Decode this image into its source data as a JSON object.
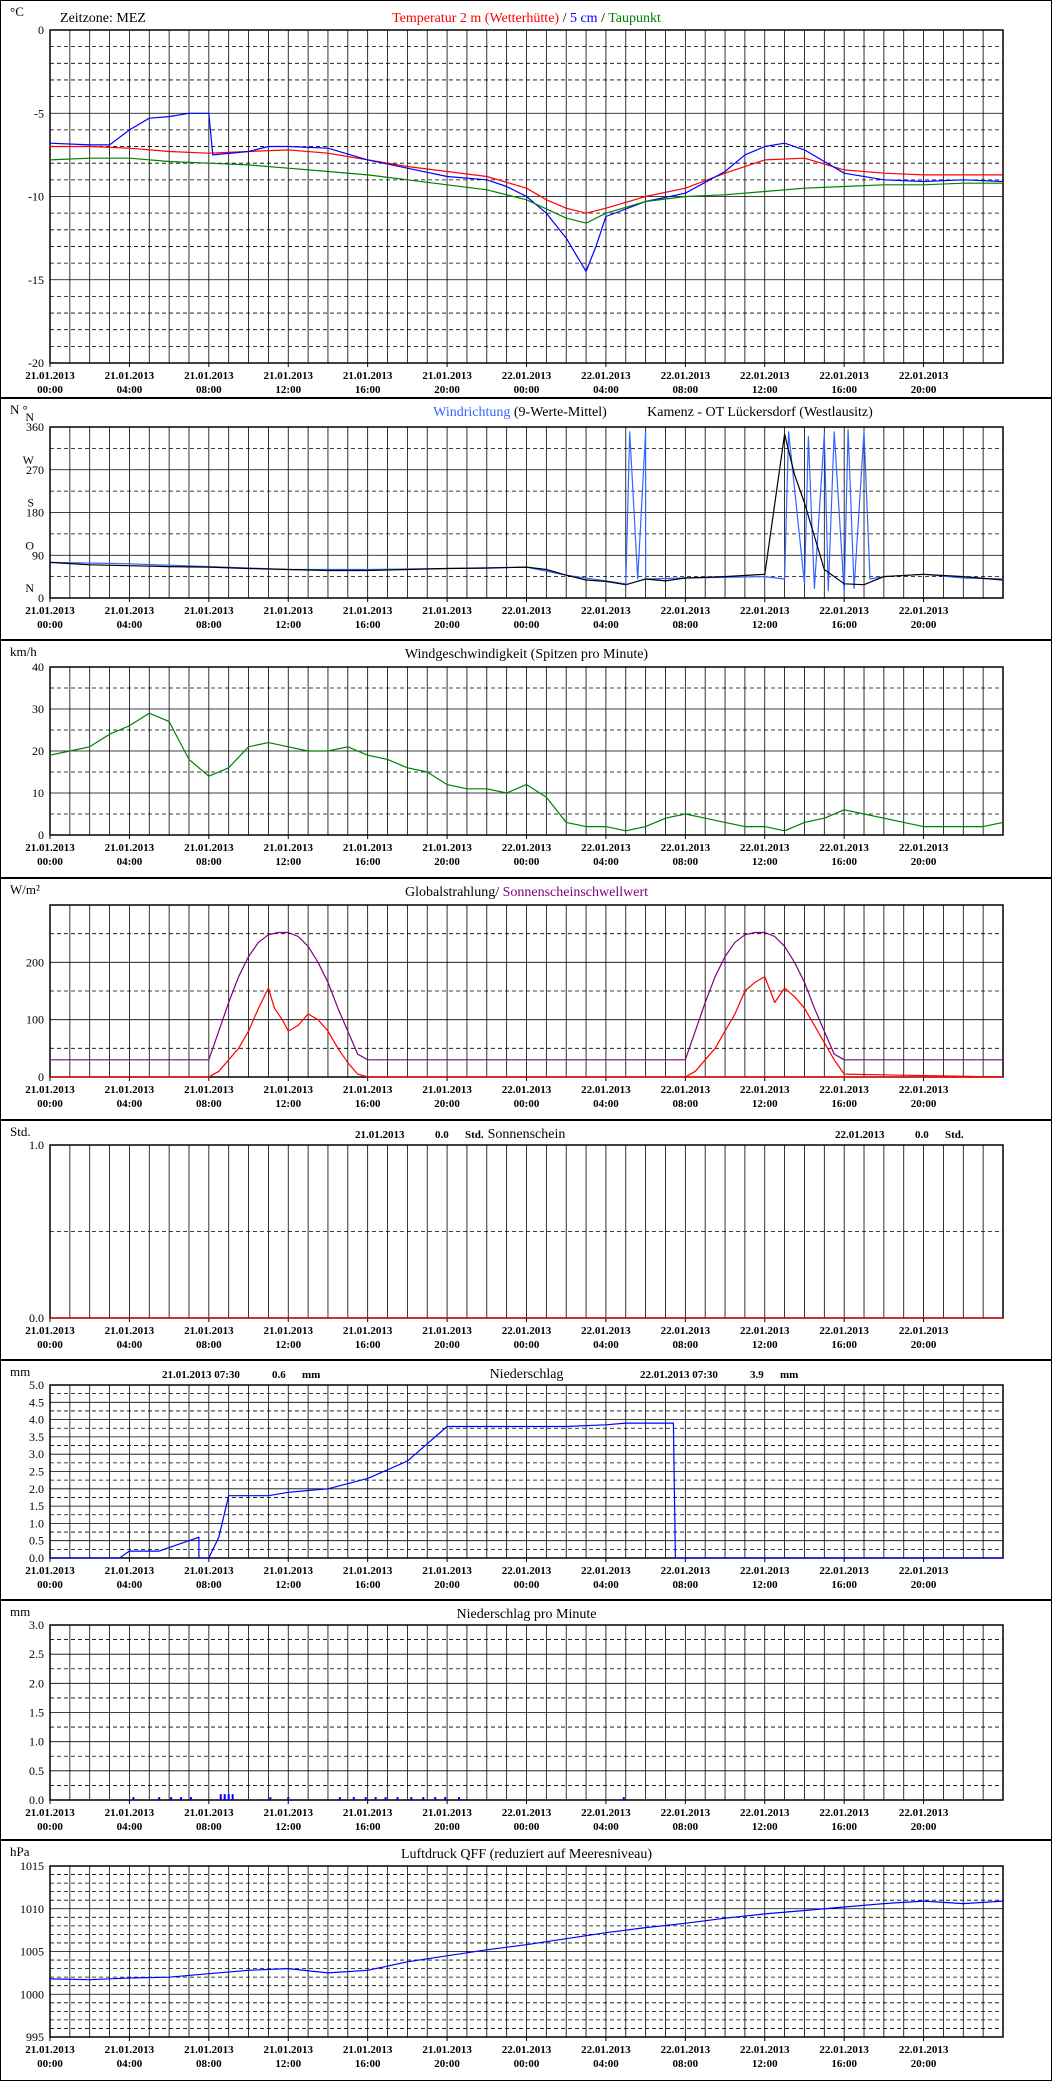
{
  "x_ticks": [
    [
      "21.01.2013",
      "00:00"
    ],
    [
      "21.01.2013",
      "04:00"
    ],
    [
      "21.01.2013",
      "08:00"
    ],
    [
      "21.01.2013",
      "12:00"
    ],
    [
      "21.01.2013",
      "16:00"
    ],
    [
      "21.01.2013",
      "20:00"
    ],
    [
      "22.01.2013",
      "00:00"
    ],
    [
      "22.01.2013",
      "04:00"
    ],
    [
      "22.01.2013",
      "08:00"
    ],
    [
      "22.01.2013",
      "12:00"
    ],
    [
      "22.01.2013",
      "16:00"
    ],
    [
      "22.01.2013",
      "20:00"
    ]
  ],
  "chart_data": [
    {
      "id": "temperature",
      "type": "line",
      "unit": "°C",
      "title_parts": [
        {
          "text": "Temperatur 2 m (Wetterhütte)",
          "color": "#ff0000"
        },
        {
          "text": " / ",
          "color": "#000000"
        },
        {
          "text": "5 cm",
          "color": "#0000ff"
        },
        {
          "text": " / ",
          "color": "#000000"
        },
        {
          "text": "Taupunkt",
          "color": "#008000"
        }
      ],
      "info_left": "Zeitzone: MEZ",
      "ylim": [
        -20,
        0
      ],
      "yticks": [
        0,
        -5,
        -10,
        -15,
        -20
      ],
      "ytick_labels": [
        "0",
        "-5",
        "-10",
        "-15",
        "-20"
      ],
      "minor_step": 1,
      "major_step": 5,
      "xlim": [
        0,
        48
      ],
      "series": [
        {
          "name": "Temperatur 2 m (Wetterhütte)",
          "color": "#ff0000",
          "x": [
            0,
            2,
            4,
            6,
            8,
            10,
            12,
            14,
            16,
            18,
            20,
            22,
            24,
            25,
            26,
            27,
            28,
            30,
            32,
            34,
            36,
            38,
            40,
            42,
            44,
            46,
            48
          ],
          "y": [
            -7.0,
            -7.0,
            -7.1,
            -7.3,
            -7.4,
            -7.3,
            -7.2,
            -7.4,
            -7.8,
            -8.2,
            -8.5,
            -8.8,
            -9.5,
            -10.2,
            -10.7,
            -11.0,
            -10.7,
            -10.0,
            -9.5,
            -8.6,
            -7.8,
            -7.7,
            -8.4,
            -8.6,
            -8.7,
            -8.7,
            -8.7
          ]
        },
        {
          "name": "5 cm",
          "color": "#0000ff",
          "x": [
            0,
            2,
            3,
            4,
            5,
            6,
            7,
            8,
            8.2,
            10,
            11,
            12,
            14,
            16,
            18,
            20,
            22,
            23,
            24,
            25,
            26,
            26.5,
            27,
            27.5,
            28,
            30,
            32,
            34,
            35,
            36,
            37,
            38,
            40,
            42,
            44,
            46,
            48
          ],
          "y": [
            -6.8,
            -6.9,
            -6.9,
            -6.0,
            -5.3,
            -5.2,
            -5.0,
            -5.0,
            -7.5,
            -7.3,
            -7.0,
            -7.0,
            -7.1,
            -7.8,
            -8.3,
            -8.8,
            -9.0,
            -9.4,
            -10.0,
            -11.0,
            -12.5,
            -13.5,
            -14.5,
            -13.0,
            -11.2,
            -10.3,
            -9.8,
            -8.5,
            -7.5,
            -7.0,
            -6.8,
            -7.2,
            -8.6,
            -9.0,
            -9.1,
            -9.0,
            -9.1
          ]
        },
        {
          "name": "Taupunkt",
          "color": "#008000",
          "x": [
            0,
            2,
            4,
            6,
            8,
            10,
            12,
            14,
            16,
            18,
            20,
            22,
            24,
            26,
            27,
            28,
            30,
            32,
            34,
            36,
            38,
            40,
            42,
            44,
            46,
            48
          ],
          "y": [
            -7.8,
            -7.7,
            -7.7,
            -7.9,
            -8.0,
            -8.1,
            -8.3,
            -8.5,
            -8.7,
            -9.0,
            -9.3,
            -9.6,
            -10.2,
            -11.3,
            -11.6,
            -11.0,
            -10.3,
            -10.0,
            -9.9,
            -9.7,
            -9.5,
            -9.4,
            -9.3,
            -9.3,
            -9.2,
            -9.2
          ]
        }
      ]
    },
    {
      "id": "wind_direction",
      "type": "line",
      "unit": "N °",
      "title_parts": [
        {
          "text": "Windrichtung",
          "color": "#3366ff"
        },
        {
          "text": " (9-Werte-Mittel)",
          "color": "#000000"
        }
      ],
      "info_right": "Kamenz - OT Lückersdorf (Westlausitz)",
      "ylim": [
        0,
        360
      ],
      "yticks": [
        0,
        90,
        180,
        270,
        360
      ],
      "ytick_labels": [
        "0",
        "90",
        "180",
        "270",
        "360"
      ],
      "compass_labels": [
        "N",
        "O",
        "S",
        "W",
        "N"
      ],
      "minor_step": 45,
      "major_step": 90,
      "xlim": [
        0,
        48
      ],
      "series": [
        {
          "name": "Windrichtung",
          "color": "#3366ff",
          "x": [
            0,
            4,
            8,
            12,
            16,
            20,
            24,
            26,
            29,
            29.2,
            29.6,
            30,
            30,
            32,
            36,
            37,
            37.2,
            38,
            38.2,
            38.5,
            39,
            39.2,
            39.5,
            40,
            40.2,
            40.5,
            41,
            41.3,
            42,
            44,
            46,
            48
          ],
          "y": [
            75,
            72,
            66,
            60,
            60,
            62,
            65,
            48,
            30,
            350,
            40,
            350,
            40,
            42,
            45,
            40,
            350,
            30,
            340,
            20,
            345,
            15,
            350,
            10,
            355,
            20,
            350,
            40,
            45,
            50,
            42,
            40
          ]
        },
        {
          "name": "9-Werte-Mittel",
          "color": "#000000",
          "x": [
            0,
            2,
            4,
            6,
            8,
            10,
            12,
            14,
            16,
            18,
            20,
            22,
            24,
            25,
            26,
            27,
            28,
            29,
            30,
            31,
            32,
            34,
            36,
            37,
            37.5,
            38,
            39,
            40,
            41,
            42,
            44,
            46,
            48
          ],
          "y": [
            75,
            70,
            68,
            66,
            65,
            62,
            60,
            58,
            58,
            60,
            62,
            63,
            65,
            60,
            48,
            38,
            35,
            28,
            40,
            36,
            42,
            45,
            50,
            345,
            260,
            200,
            60,
            30,
            28,
            45,
            50,
            45,
            38
          ]
        }
      ]
    },
    {
      "id": "wind_speed",
      "type": "line",
      "unit": "km/h",
      "title": "Windgeschwindigkeit (Spitzen pro Minute)",
      "ylim": [
        0,
        40
      ],
      "yticks": [
        0,
        10,
        20,
        30,
        40
      ],
      "ytick_labels": [
        "0",
        "10",
        "20",
        "30",
        "40"
      ],
      "minor_step": 5,
      "major_step": 10,
      "xlim": [
        0,
        48
      ],
      "series": [
        {
          "name": "Windgeschwindigkeit",
          "color": "#008000",
          "x": [
            0,
            1,
            2,
            3,
            4,
            5,
            6,
            7,
            8,
            9,
            10,
            11,
            12,
            13,
            14,
            15,
            16,
            17,
            18,
            19,
            20,
            21,
            22,
            23,
            24,
            25,
            26,
            27,
            28,
            29,
            30,
            31,
            32,
            33,
            34,
            35,
            36,
            37,
            38,
            39,
            40,
            41,
            42,
            43,
            44,
            45,
            46,
            47,
            48
          ],
          "y": [
            19,
            20,
            21,
            24,
            26,
            29,
            27,
            18,
            14,
            16,
            21,
            22,
            21,
            20,
            20,
            21,
            19,
            18,
            16,
            15,
            12,
            11,
            11,
            10,
            12,
            9,
            3,
            2,
            2,
            1,
            2,
            4,
            5,
            4,
            3,
            2,
            2,
            1,
            3,
            4,
            6,
            5,
            4,
            3,
            2,
            2,
            2,
            2,
            3
          ]
        }
      ]
    },
    {
      "id": "global_radiation",
      "type": "line",
      "unit": "W/m²",
      "title_parts": [
        {
          "text": "Globalstrahlung/ ",
          "color": "#000000"
        },
        {
          "text": "Sonnenscheinschwellwert",
          "color": "#800080"
        }
      ],
      "ylim": [
        0,
        300
      ],
      "yticks": [
        0,
        100,
        200
      ],
      "ytick_labels": [
        "0",
        "100",
        "200"
      ],
      "minor_step": 50,
      "major_step": 100,
      "xlim": [
        0,
        48
      ],
      "series": [
        {
          "name": "Globalstrahlung",
          "color": "#ff0000",
          "x": [
            0,
            8,
            8.5,
            9,
            9.5,
            10,
            10.5,
            11,
            11.3,
            11.7,
            12,
            12.5,
            13,
            13.5,
            14,
            14.5,
            15,
            15.5,
            16,
            48
          ],
          "y": [
            0,
            0,
            10,
            30,
            50,
            80,
            120,
            155,
            120,
            100,
            80,
            90,
            110,
            100,
            80,
            50,
            25,
            5,
            0,
            0
          ]
        },
        {
          "name": "Globalstrahlung Tag 2",
          "color": "#ff0000",
          "x": [
            32,
            32.5,
            33,
            33.5,
            34,
            34.5,
            35,
            35.5,
            36,
            36.5,
            37,
            37.5,
            38,
            38.5,
            39,
            39.5,
            40,
            48
          ],
          "y": [
            0,
            10,
            30,
            50,
            80,
            110,
            150,
            165,
            175,
            130,
            155,
            140,
            120,
            90,
            60,
            30,
            5,
            0
          ]
        },
        {
          "name": "Sonnenscheinschwellwert",
          "color": "#800080",
          "x": [
            0,
            8,
            8.5,
            9,
            9.5,
            10,
            10.5,
            11,
            11.5,
            12,
            12.5,
            13,
            13.5,
            14,
            14.5,
            15,
            15.5,
            16,
            32,
            32.5,
            33,
            33.5,
            34,
            34.5,
            35,
            35.5,
            36,
            36.5,
            37,
            37.5,
            38,
            38.5,
            39,
            39.5,
            40,
            48
          ],
          "y": [
            30,
            30,
            80,
            130,
            175,
            210,
            235,
            248,
            252,
            252,
            245,
            228,
            200,
            165,
            120,
            80,
            40,
            30,
            30,
            80,
            130,
            175,
            210,
            235,
            248,
            252,
            252,
            245,
            228,
            200,
            165,
            120,
            80,
            40,
            30,
            30
          ]
        }
      ]
    },
    {
      "id": "sunshine",
      "type": "line",
      "unit": "Std.",
      "title": "Sonnenschein",
      "info_items": [
        {
          "date": "21.01.2013",
          "value": "0.0",
          "unit": "Std."
        },
        {
          "date": "22.01.2013",
          "value": "0.0",
          "unit": "Std."
        }
      ],
      "ylim": [
        0,
        1
      ],
      "yticks": [
        0,
        1
      ],
      "ytick_labels": [
        "0.0",
        "1.0"
      ],
      "minor_step": 0.5,
      "major_step": 1,
      "xlim": [
        0,
        48
      ],
      "series": [
        {
          "name": "Sonnenschein",
          "color": "#ff0000",
          "x": [
            0,
            48
          ],
          "y": [
            0,
            0
          ]
        }
      ]
    },
    {
      "id": "precipitation",
      "type": "line",
      "unit": "mm",
      "title": "Niederschlag",
      "info_items": [
        {
          "date": "21.01.2013 07:30",
          "value": "0.6",
          "unit": "mm"
        },
        {
          "date": "22.01.2013 07:30",
          "value": "3.9",
          "unit": "mm"
        }
      ],
      "ylim": [
        0,
        5
      ],
      "yticks": [
        0,
        0.5,
        1,
        1.5,
        2,
        2.5,
        3,
        3.5,
        4,
        4.5,
        5
      ],
      "ytick_labels": [
        "0.0",
        "0.5",
        "1.0",
        "1.5",
        "2.0",
        "2.5",
        "3.0",
        "3.5",
        "4.0",
        "4.5",
        "5.0"
      ],
      "minor_step": 0.25,
      "major_step": 0.5,
      "xlim": [
        0,
        48
      ],
      "series": [
        {
          "name": "Niederschlag",
          "color": "#0000ff",
          "x": [
            0,
            3.5,
            4,
            5.5,
            6,
            7,
            7.5,
            7.5,
            8,
            8.5,
            9,
            9.5,
            10,
            11,
            12,
            13,
            14,
            16,
            18,
            19,
            20,
            21,
            22,
            24,
            26,
            28,
            29,
            30,
            31.4,
            31.5,
            48
          ],
          "y": [
            0,
            0,
            0.2,
            0.2,
            0.3,
            0.5,
            0.6,
            0,
            0,
            0.6,
            1.8,
            1.8,
            1.8,
            1.8,
            1.9,
            1.95,
            2.0,
            2.3,
            2.8,
            3.3,
            3.8,
            3.8,
            3.8,
            3.8,
            3.8,
            3.85,
            3.9,
            3.9,
            3.9,
            0,
            0
          ]
        }
      ]
    },
    {
      "id": "precipitation_per_minute",
      "type": "bar",
      "unit": "mm",
      "title": "Niederschlag pro Minute",
      "ylim": [
        0,
        3
      ],
      "yticks": [
        0,
        0.5,
        1,
        1.5,
        2,
        2.5,
        3
      ],
      "ytick_labels": [
        "0.0",
        "0.5",
        "1.0",
        "1.5",
        "2.0",
        "2.5",
        "3.0"
      ],
      "minor_step": 0.25,
      "major_step": 0.5,
      "xlim": [
        0,
        48
      ],
      "series": [
        {
          "name": "Niederschlag pro Minute",
          "color": "#0000ff",
          "x": [
            4.2,
            5.5,
            6.1,
            6.6,
            7.1,
            8.6,
            8.8,
            9.0,
            9.2,
            11.1,
            12.0,
            14.6,
            15.3,
            15.9,
            16.4,
            16.9,
            17.5,
            18.2,
            18.8,
            19.4,
            19.9,
            20.6,
            28.9
          ],
          "y": [
            0.05,
            0.05,
            0.05,
            0.05,
            0.05,
            0.1,
            0.1,
            0.1,
            0.1,
            0.05,
            0.05,
            0.05,
            0.05,
            0.05,
            0.05,
            0.05,
            0.05,
            0.05,
            0.05,
            0.05,
            0.05,
            0.05,
            0.05
          ]
        }
      ]
    },
    {
      "id": "pressure",
      "type": "line",
      "unit": "hPa",
      "title": "Luftdruck QFF (reduziert auf Meeresniveau)",
      "ylim": [
        995,
        1015
      ],
      "yticks": [
        995,
        1000,
        1005,
        1010,
        1015
      ],
      "ytick_labels": [
        "995",
        "1000",
        "1005",
        "1010",
        "1015"
      ],
      "minor_step": 1,
      "major_step": 5,
      "xlim": [
        0,
        48
      ],
      "series": [
        {
          "name": "Luftdruck QFF",
          "color": "#0000ff",
          "x": [
            0,
            2,
            4,
            6,
            8,
            10,
            12,
            14,
            16,
            18,
            20,
            22,
            24,
            26,
            28,
            30,
            32,
            34,
            36,
            38,
            40,
            42,
            44,
            46,
            48
          ],
          "y": [
            1001.8,
            1001.7,
            1001.9,
            1002.0,
            1002.4,
            1002.8,
            1003.0,
            1002.5,
            1002.8,
            1003.8,
            1004.5,
            1005.2,
            1005.8,
            1006.5,
            1007.2,
            1007.8,
            1008.3,
            1008.9,
            1009.4,
            1009.8,
            1010.2,
            1010.6,
            1010.9,
            1010.6,
            1010.9
          ]
        }
      ]
    }
  ]
}
